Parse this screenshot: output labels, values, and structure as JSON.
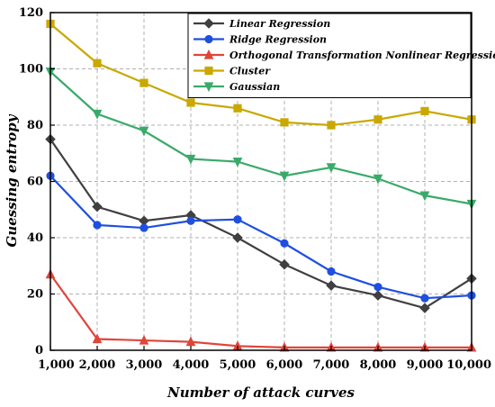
{
  "chart_data": {
    "type": "line",
    "title": "",
    "xlabel": "Number of attack curves",
    "ylabel": "Guessing entropy",
    "x": [
      1000,
      2000,
      3000,
      4000,
      5000,
      6000,
      7000,
      8000,
      9000,
      10000
    ],
    "x_tick_labels": [
      "1,000",
      "2,000",
      "3,000",
      "4,000",
      "5,000",
      "6,000",
      "7,000",
      "8,000",
      "9,000",
      "10,000"
    ],
    "xlim": [
      1000,
      10000
    ],
    "ylim": [
      0,
      120
    ],
    "y_ticks": [
      0,
      20,
      40,
      60,
      80,
      100,
      120
    ],
    "y_tick_labels": [
      "0",
      "20",
      "40",
      "60",
      "80",
      "100",
      "120"
    ],
    "grid": true,
    "legend_position": "top-right",
    "series": [
      {
        "name": "Linear Regression",
        "color": "#404040",
        "marker": "diamond",
        "values": [
          75,
          51,
          46,
          48,
          40,
          30.5,
          23,
          19.5,
          15,
          25.5
        ]
      },
      {
        "name": "Ridge Regression",
        "color": "#1f4fe0",
        "marker": "circle",
        "values": [
          62,
          44.5,
          43.5,
          46,
          46.5,
          38,
          28,
          22.5,
          18.5,
          19.5
        ]
      },
      {
        "name": "Orthogonal Transformation Nonlinear Regression",
        "color": "#e0453a",
        "marker": "triangle-up",
        "values": [
          27,
          4,
          3.5,
          3,
          1.5,
          1,
          1,
          1,
          1,
          1
        ]
      },
      {
        "name": "Cluster",
        "color": "#c9a800",
        "marker": "square",
        "values": [
          116,
          102,
          95,
          88,
          86,
          81,
          80,
          82,
          85,
          82
        ]
      },
      {
        "name": "Gaussian",
        "color": "#3aaa6a",
        "marker": "triangle-down",
        "values": [
          99,
          84,
          78,
          68,
          67,
          62,
          65,
          61,
          55,
          52
        ]
      }
    ]
  }
}
